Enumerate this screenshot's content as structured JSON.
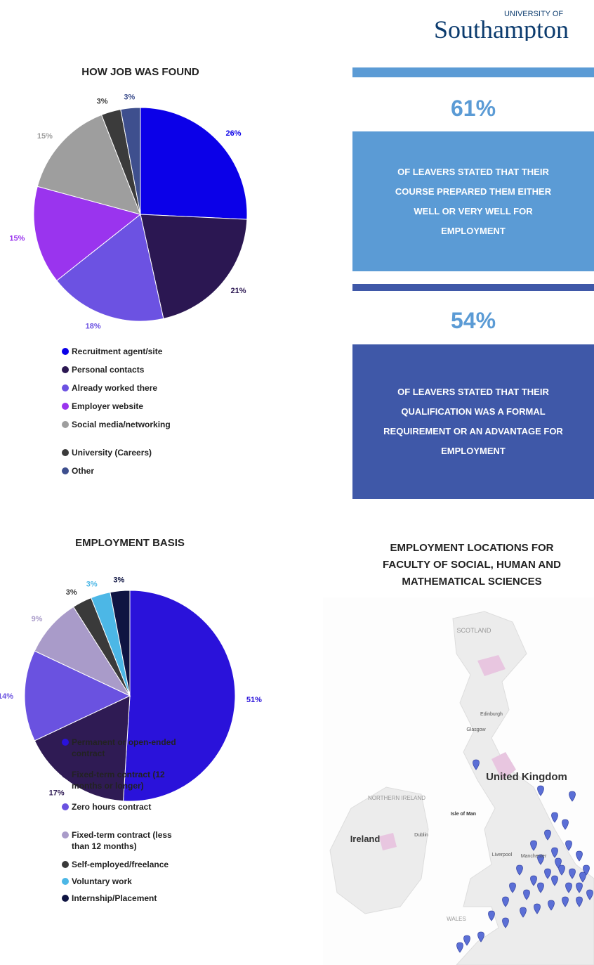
{
  "logo": {
    "small": "UNIVERSITY OF",
    "name": "Southampton"
  },
  "chart_data": [
    {
      "type": "pie",
      "title": "HOW JOB WAS FOUND",
      "categories": [
        "Recruitment agent/site",
        "Personal contacts",
        "Already worked there",
        "Employer website",
        "Social media/networking",
        "University (Careers)",
        "Other"
      ],
      "values": [
        26,
        21,
        18,
        15,
        15,
        3,
        3
      ],
      "value_labels": [
        "26%",
        "21%",
        "18%",
        "15%",
        "15%",
        "3%",
        "3%"
      ],
      "colors": [
        "#0b00e8",
        "#2b1752",
        "#6c52e2",
        "#9a34ee",
        "#9e9e9e",
        "#3b3b3b",
        "#3e4f8e"
      ]
    },
    {
      "type": "pie",
      "title": "EMPLOYMENT BASIS",
      "categories": [
        "Permanent or open-ended contract",
        "Fixed-term contract (12 months or longer)",
        "Zero hours contract",
        "Fixed-term contract (less than 12 months)",
        "Self-employed/freelance",
        "Voluntary work",
        "Internship/Placement"
      ],
      "values": [
        51,
        17,
        14,
        9,
        3,
        3,
        3
      ],
      "value_labels": [
        "51%",
        "17%",
        "14%",
        "9%",
        "3%",
        "3%",
        "3%"
      ],
      "colors": [
        "#2a12da",
        "#2f1b54",
        "#6a52e0",
        "#a99bc9",
        "#3a3a3a",
        "#4cb7e6",
        "#0f1442"
      ]
    }
  ],
  "stats": [
    {
      "figure": "61%",
      "text": "OF LEAVERS STATED THAT THEIR COURSE PREPARED THEM EITHER WELL OR VERY WELL FOR EMPLOYMENT"
    },
    {
      "figure": "54%",
      "text": "OF LEAVERS STATED THAT THEIR QUALIFICATION WAS A FORMAL REQUIREMENT OR AN ADVANTAGE FOR EMPLOYMENT"
    }
  ],
  "map": {
    "title": "EMPLOYMENT LOCATIONS FOR FACULTY OF SOCIAL, HUMAN AND MATHEMATICAL SCIENCES",
    "labels": [
      "SCOTLAND",
      "United Kingdom",
      "NORTHERN IRELAND",
      "Ireland",
      "Isle of Man",
      "WALES",
      "Edinburgh",
      "Glasgow",
      "Dublin",
      "Liverpool",
      "Manchester"
    ]
  }
}
